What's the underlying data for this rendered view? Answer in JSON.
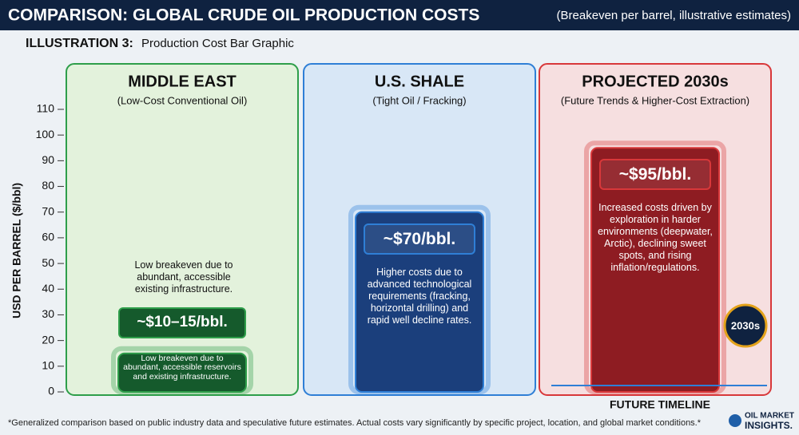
{
  "header": {
    "title": "COMPARISON: GLOBAL CRUDE OIL PRODUCTION COSTS",
    "subtitle": "(Breakeven per barrel, illustrative estimates)"
  },
  "subheading": {
    "bold": "ILLUSTRATION 3:",
    "text": "Production Cost Bar Graphic"
  },
  "chart_data": {
    "type": "bar",
    "y_label": "USD PER BARREL ($/bbl)",
    "categories": [
      "MIDDLE EAST",
      "U.S. SHALE",
      "PROJECTED 2030s"
    ],
    "subtitles": [
      "(Low-Cost Conventional Oil)",
      "(Tight Oil / Fracking)",
      "(Future Trends & Higher-Cost Extraction)"
    ],
    "values": [
      15,
      70,
      95
    ],
    "value_labels": [
      "~$10–15/bbl.",
      "~$70/bbl.",
      "~$95/bbl."
    ],
    "descriptions": [
      "Low breakeven due to abundant, accessible reservoirs and existing infrastructure.",
      "Higher costs due to advanced technological requirements (fracking, horizontal drilling) and rapid well decline rates.",
      "Increased costs driven by exploration in harder environments (deepwater, Arctic), declining sweet spots, and rising inflation/regulations."
    ],
    "colors": [
      "#2e9e4a",
      "#2f7fd6",
      "#d8383a"
    ],
    "ylim": [
      0,
      110
    ],
    "yticks": [
      0,
      10,
      20,
      30,
      40,
      50,
      60,
      70,
      80,
      90,
      100,
      110
    ]
  },
  "annotations": {
    "middle_east_note": "Low breakeven due to abundant, accessible existing infrastructure.",
    "badge": "2030s",
    "timeline": "FUTURE TIMELINE"
  },
  "footnote": "*Generalized comparison based on public industry data and speculative future estimates. Actual costs vary significantly by specific project, location, and global market conditions.*",
  "logo": {
    "line1": "OIL MARKET",
    "line2": "INSIGHTS."
  }
}
